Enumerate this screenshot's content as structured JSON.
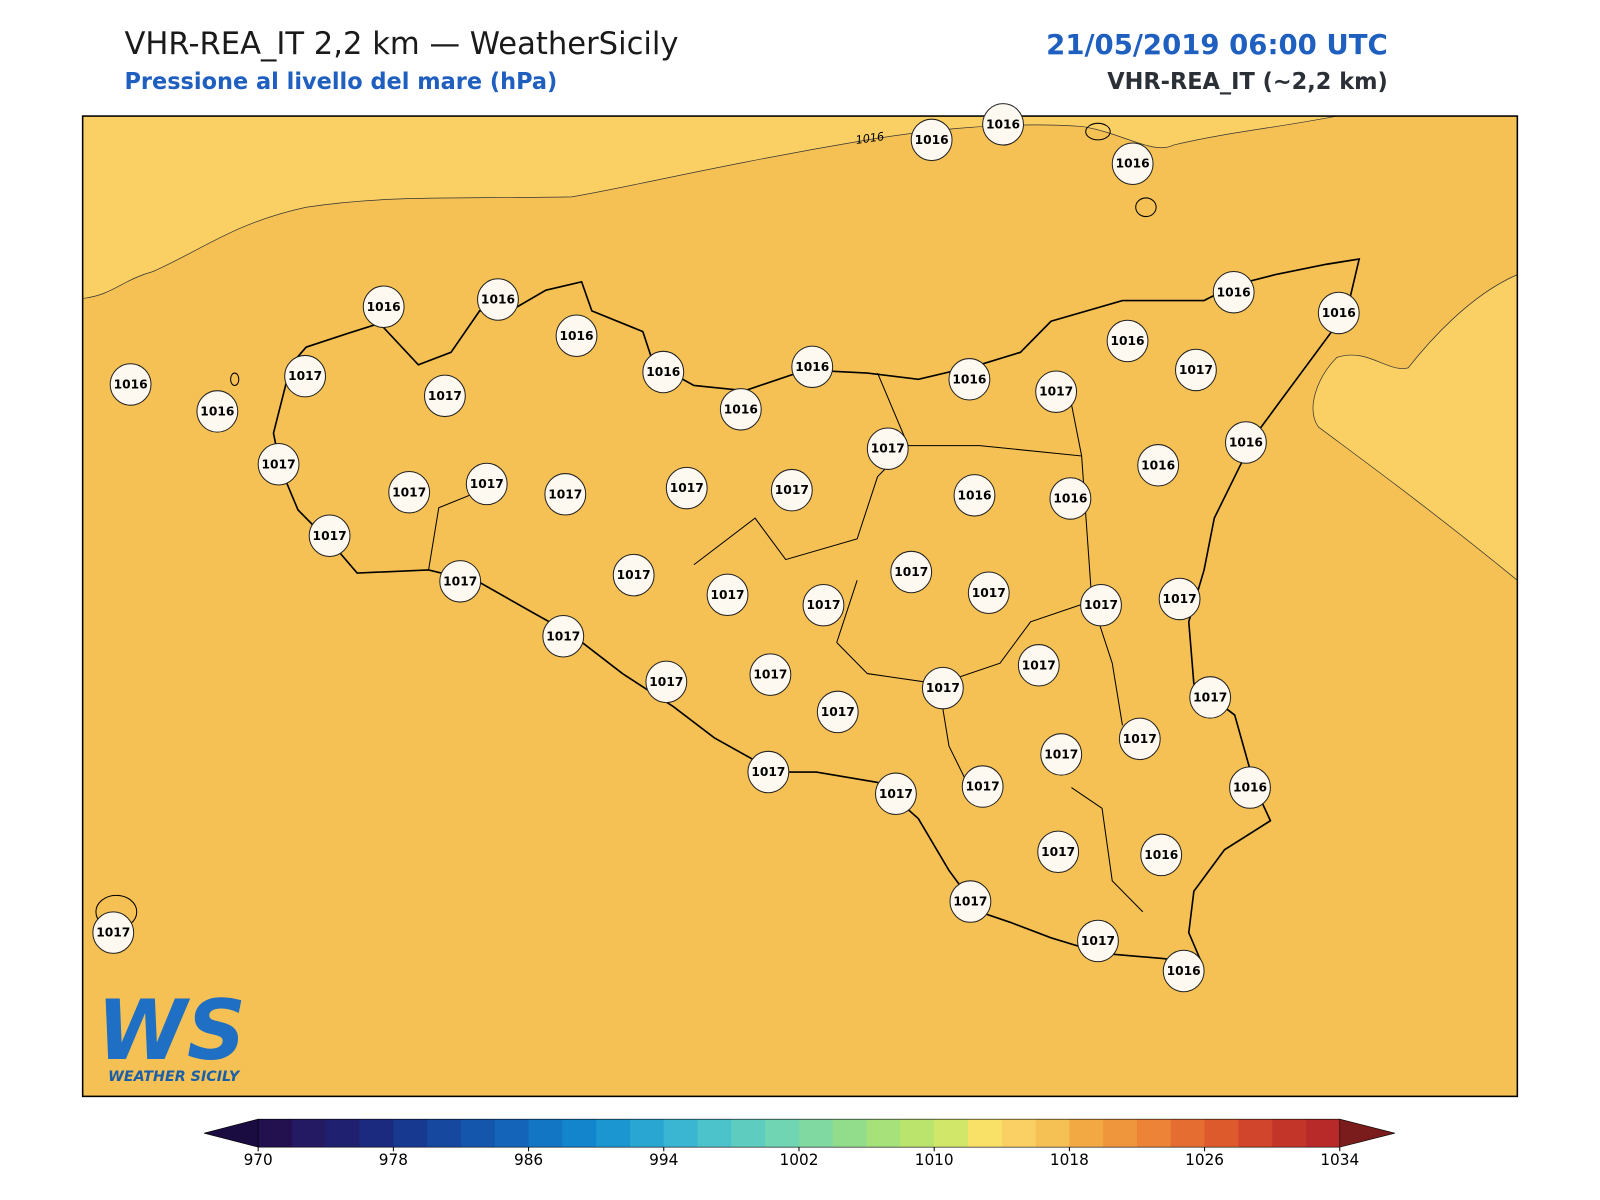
{
  "header": {
    "title": "VHR-REA_IT 2,2 km — WeatherSicily",
    "subtitle": "Pressione al livello del mare (hPa)",
    "datetime": "21/05/2019 06:00 UTC",
    "model": "VHR-REA_IT (~2,2 km)"
  },
  "map": {
    "contour_label": 1016,
    "stations": [
      1016,
      1016,
      1016,
      1016,
      1016,
      1016,
      1016,
      1016,
      1016,
      1016,
      1016,
      1017,
      1017,
      1017,
      1017,
      1017,
      1017,
      1017,
      1017,
      1017,
      1016,
      1017,
      1016,
      1017,
      1016,
      1016,
      1016,
      1016,
      1016,
      1016,
      1017,
      1017,
      1017,
      1017,
      1017,
      1017,
      1017,
      1017,
      1017,
      1017,
      1017,
      1017,
      1017,
      1017,
      1017,
      1017,
      1017,
      1017,
      1017,
      1017,
      1017,
      1016,
      1017,
      1016,
      1017,
      1017,
      1016,
      1017
    ]
  },
  "colorbar": {
    "ticks": [
      970,
      978,
      986,
      994,
      1002,
      1010,
      1018,
      1026,
      1034
    ],
    "colors": [
      "#22104f",
      "#241a64",
      "#1f2070",
      "#1b2a7f",
      "#183990",
      "#1748a0",
      "#1556ad",
      "#1465ba",
      "#1276c4",
      "#1285cc",
      "#1b96d0",
      "#2aa6d2",
      "#3ab5d2",
      "#4cc2cb",
      "#5ecdc0",
      "#6fd5b2",
      "#80d9a0",
      "#92dd8c",
      "#a6e179",
      "#bbe46c",
      "#d1e76a",
      "#f9e168",
      "#fad064",
      "#f5c155",
      "#f2a944",
      "#ef963d",
      "#ec8337",
      "#e66d31",
      "#dd5a2d",
      "#d0452b",
      "#c43529",
      "#b8292a"
    ],
    "extend_colors": [
      "#1a0b40",
      "#7a1c1c"
    ]
  },
  "logo": {
    "mark": "WS",
    "name": "WEATHER SICILY"
  }
}
